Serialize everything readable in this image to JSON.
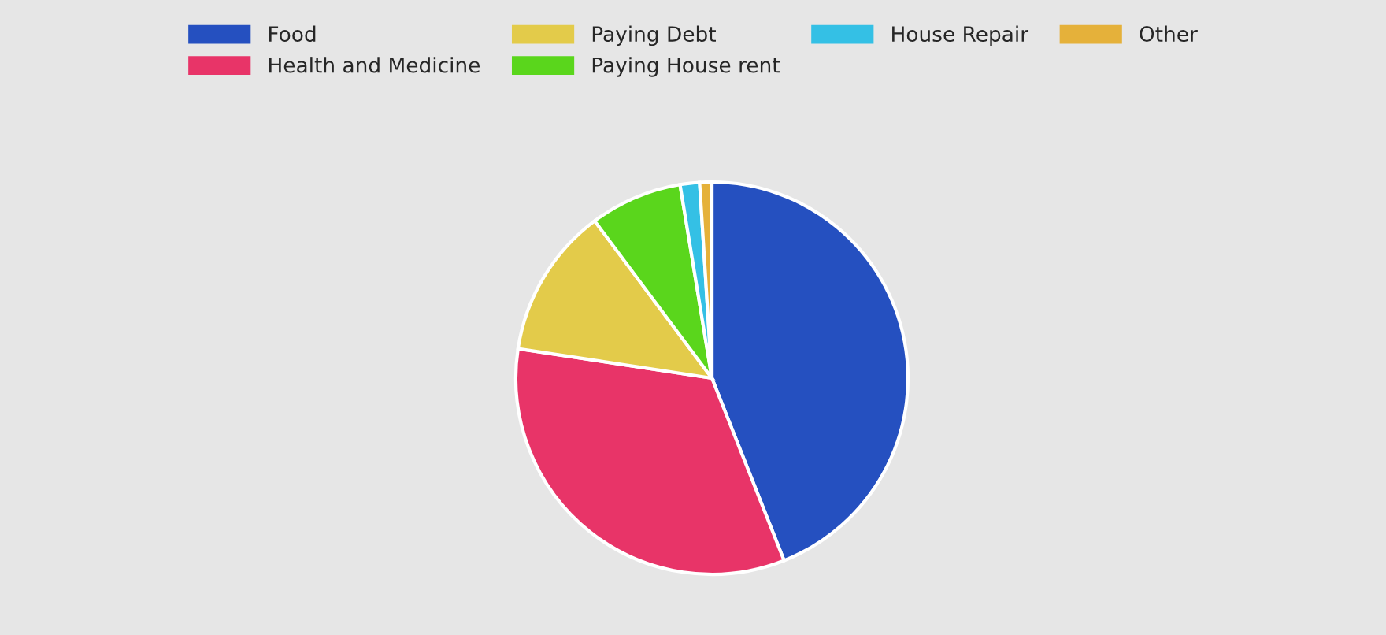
{
  "chart_data": {
    "type": "pie",
    "categories": [
      "Food",
      "Health and Medicine",
      "Paying Debt",
      "Paying House rent",
      "House Repair",
      "Other"
    ],
    "values": [
      44,
      33.4,
      12.4,
      7.6,
      1.6,
      1.0
    ],
    "colors": [
      "#2550c0",
      "#e83468",
      "#e3cb4a",
      "#5ad61c",
      "#34c0e5",
      "#e5b13a"
    ],
    "legend": "top"
  }
}
